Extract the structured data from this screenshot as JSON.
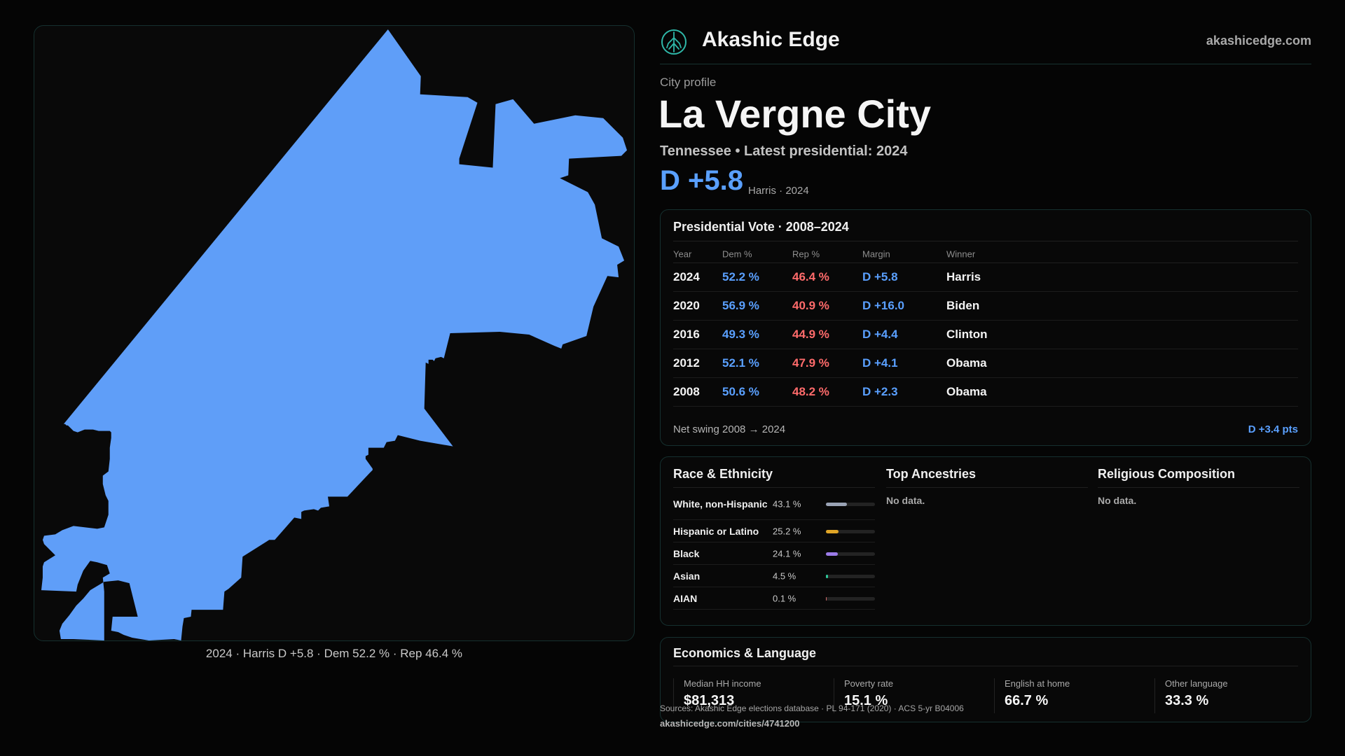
{
  "header": {
    "brand": "Akashic Edge",
    "site": "akashicedge.com",
    "logo_icon": "tree-of-life-icon"
  },
  "profile": {
    "eyebrow": "City profile",
    "city": "La Vergne City",
    "subline": "Tennessee  • Latest presidential: 2024",
    "margin": "D +5.8",
    "margin_note": "Harris · 2024"
  },
  "map": {
    "caption": "2024 · Harris D +5.8 · Dem 52.2 % · Rep 46.4 %",
    "fill_color": "#5f9ef8"
  },
  "vote": {
    "title": "Presidential Vote · 2008–2024",
    "headers": {
      "year": "Year",
      "dem": "Dem %",
      "rep": "Rep %",
      "margin": "Margin",
      "winner": "Winner"
    },
    "rows": [
      {
        "year": "2024",
        "dem": "52.2 %",
        "rep": "46.4 %",
        "margin": "D +5.8",
        "winner": "Harris"
      },
      {
        "year": "2020",
        "dem": "56.9 %",
        "rep": "40.9 %",
        "margin": "D +16.0",
        "winner": "Biden"
      },
      {
        "year": "2016",
        "dem": "49.3 %",
        "rep": "44.9 %",
        "margin": "D +4.4",
        "winner": "Clinton"
      },
      {
        "year": "2012",
        "dem": "52.1 %",
        "rep": "47.9 %",
        "margin": "D +4.1",
        "winner": "Obama"
      },
      {
        "year": "2008",
        "dem": "50.6 %",
        "rep": "48.2 %",
        "margin": "D +2.3",
        "winner": "Obama"
      }
    ],
    "swing_label": "Net swing 2008 → 2024",
    "swing_value": "D +3.4 pts"
  },
  "race": {
    "title": "Race & Ethnicity",
    "rows": [
      {
        "label": "White, non-Hispanic",
        "pct": "43.1 %",
        "value": 43.1,
        "color": "#9aa3b5"
      },
      {
        "label": "Hispanic or Latino",
        "pct": "25.2 %",
        "value": 25.2,
        "color": "#e0a526"
      },
      {
        "label": "Black",
        "pct": "24.1 %",
        "value": 24.1,
        "color": "#9b7be8"
      },
      {
        "label": "Asian",
        "pct": "4.5 %",
        "value": 4.5,
        "color": "#2fc79a"
      },
      {
        "label": "AIAN",
        "pct": "0.1 %",
        "value": 0.1,
        "color": "#d06a6a"
      }
    ]
  },
  "ancestries": {
    "title": "Top Ancestries",
    "empty": "No data."
  },
  "religion": {
    "title": "Religious Composition",
    "empty": "No data."
  },
  "economics": {
    "title": "Economics & Language",
    "stats": [
      {
        "label": "Median HH income",
        "value": "$81,313"
      },
      {
        "label": "Poverty rate",
        "value": "15.1 %"
      },
      {
        "label": "English at home",
        "value": "66.7 %"
      },
      {
        "label": "Other language",
        "value": "33.3 %"
      }
    ]
  },
  "footer": {
    "sources": "Sources: Akashic Edge elections database · PL 94-171 (2020) · ACS 5-yr B04006",
    "url": "akashicedge.com/cities/4741200"
  }
}
